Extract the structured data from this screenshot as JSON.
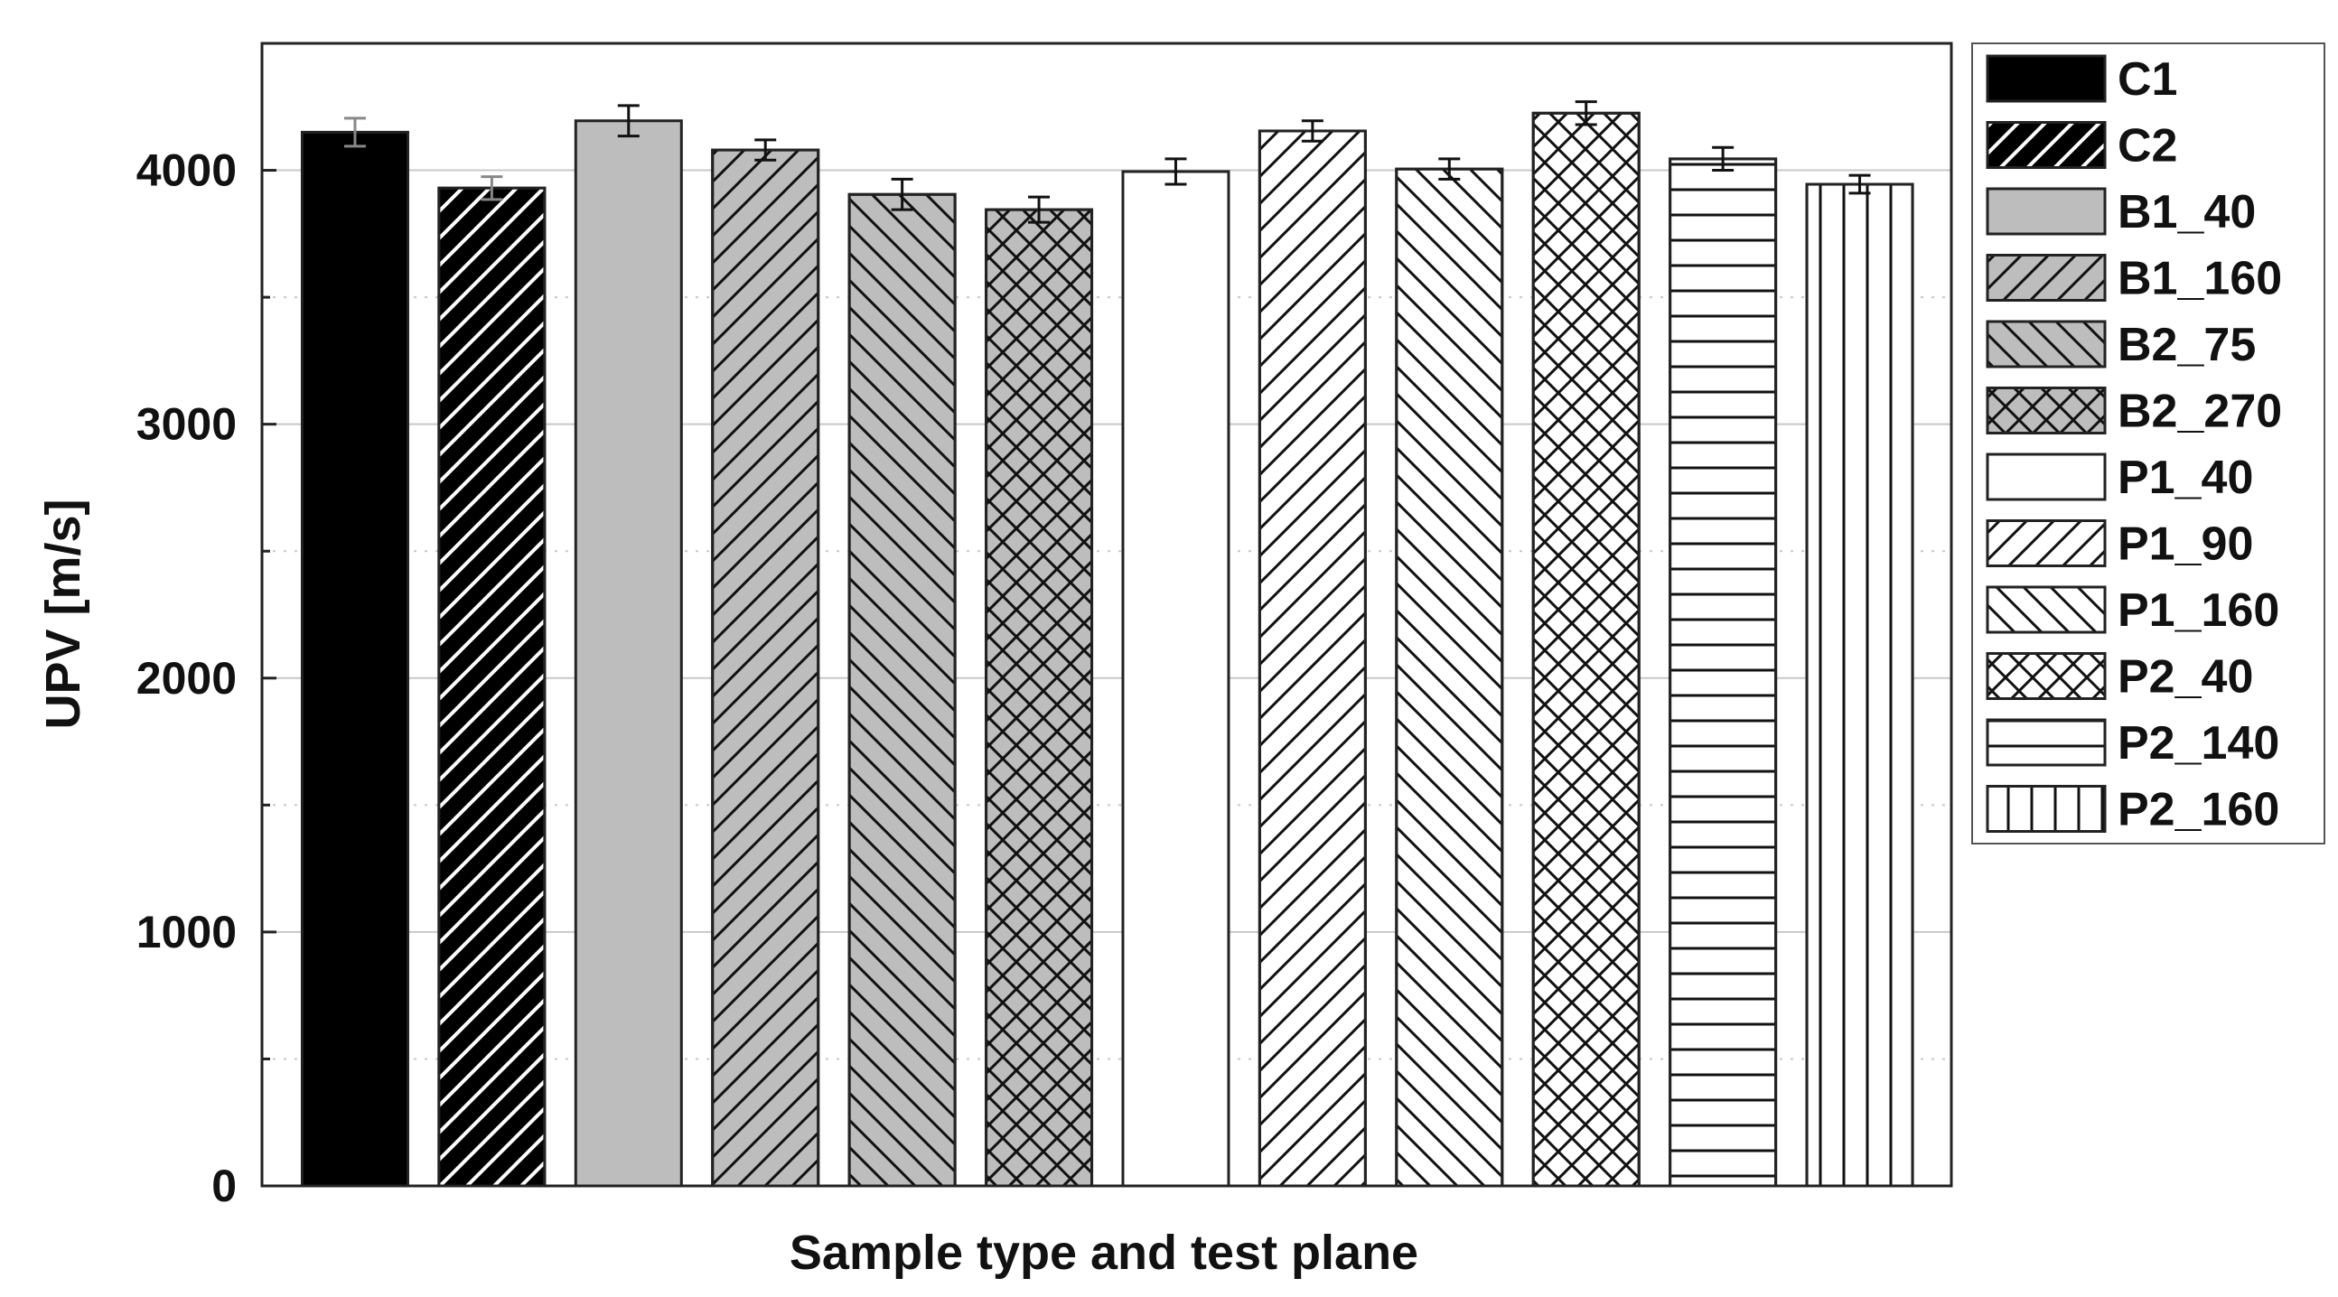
{
  "chart_data": {
    "type": "bar",
    "title": "",
    "xlabel": "Sample type and test plane",
    "ylabel": "UPV [m/s]",
    "ylim": [
      0,
      4500
    ],
    "yticks": [
      0,
      1000,
      2000,
      3000,
      4000
    ],
    "grid": true,
    "legend_position": "right",
    "categories": [
      "C1",
      "C2",
      "B1_40",
      "B1_160",
      "B2_75",
      "B2_270",
      "P1_40",
      "P1_90",
      "P1_160",
      "P2_40",
      "P2_140",
      "P2_160"
    ],
    "values": [
      4150,
      3930,
      4195,
      4080,
      3905,
      3845,
      3995,
      4155,
      4005,
      4225,
      4045,
      3945
    ],
    "errors": [
      55,
      45,
      60,
      40,
      60,
      50,
      50,
      40,
      40,
      45,
      45,
      35
    ],
    "fills": [
      "#000000",
      "#000000",
      "#bdbdbd",
      "#bdbdbd",
      "#bdbdbd",
      "#bdbdbd",
      "#ffffff",
      "#ffffff",
      "#ffffff",
      "#ffffff",
      "#ffffff",
      "#ffffff"
    ],
    "patterns": [
      "solid",
      "fdiag",
      "solid",
      "fdiag",
      "bdiag",
      "cross",
      "solid",
      "fdiag",
      "bdiag",
      "cross",
      "horiz",
      "vert"
    ]
  }
}
